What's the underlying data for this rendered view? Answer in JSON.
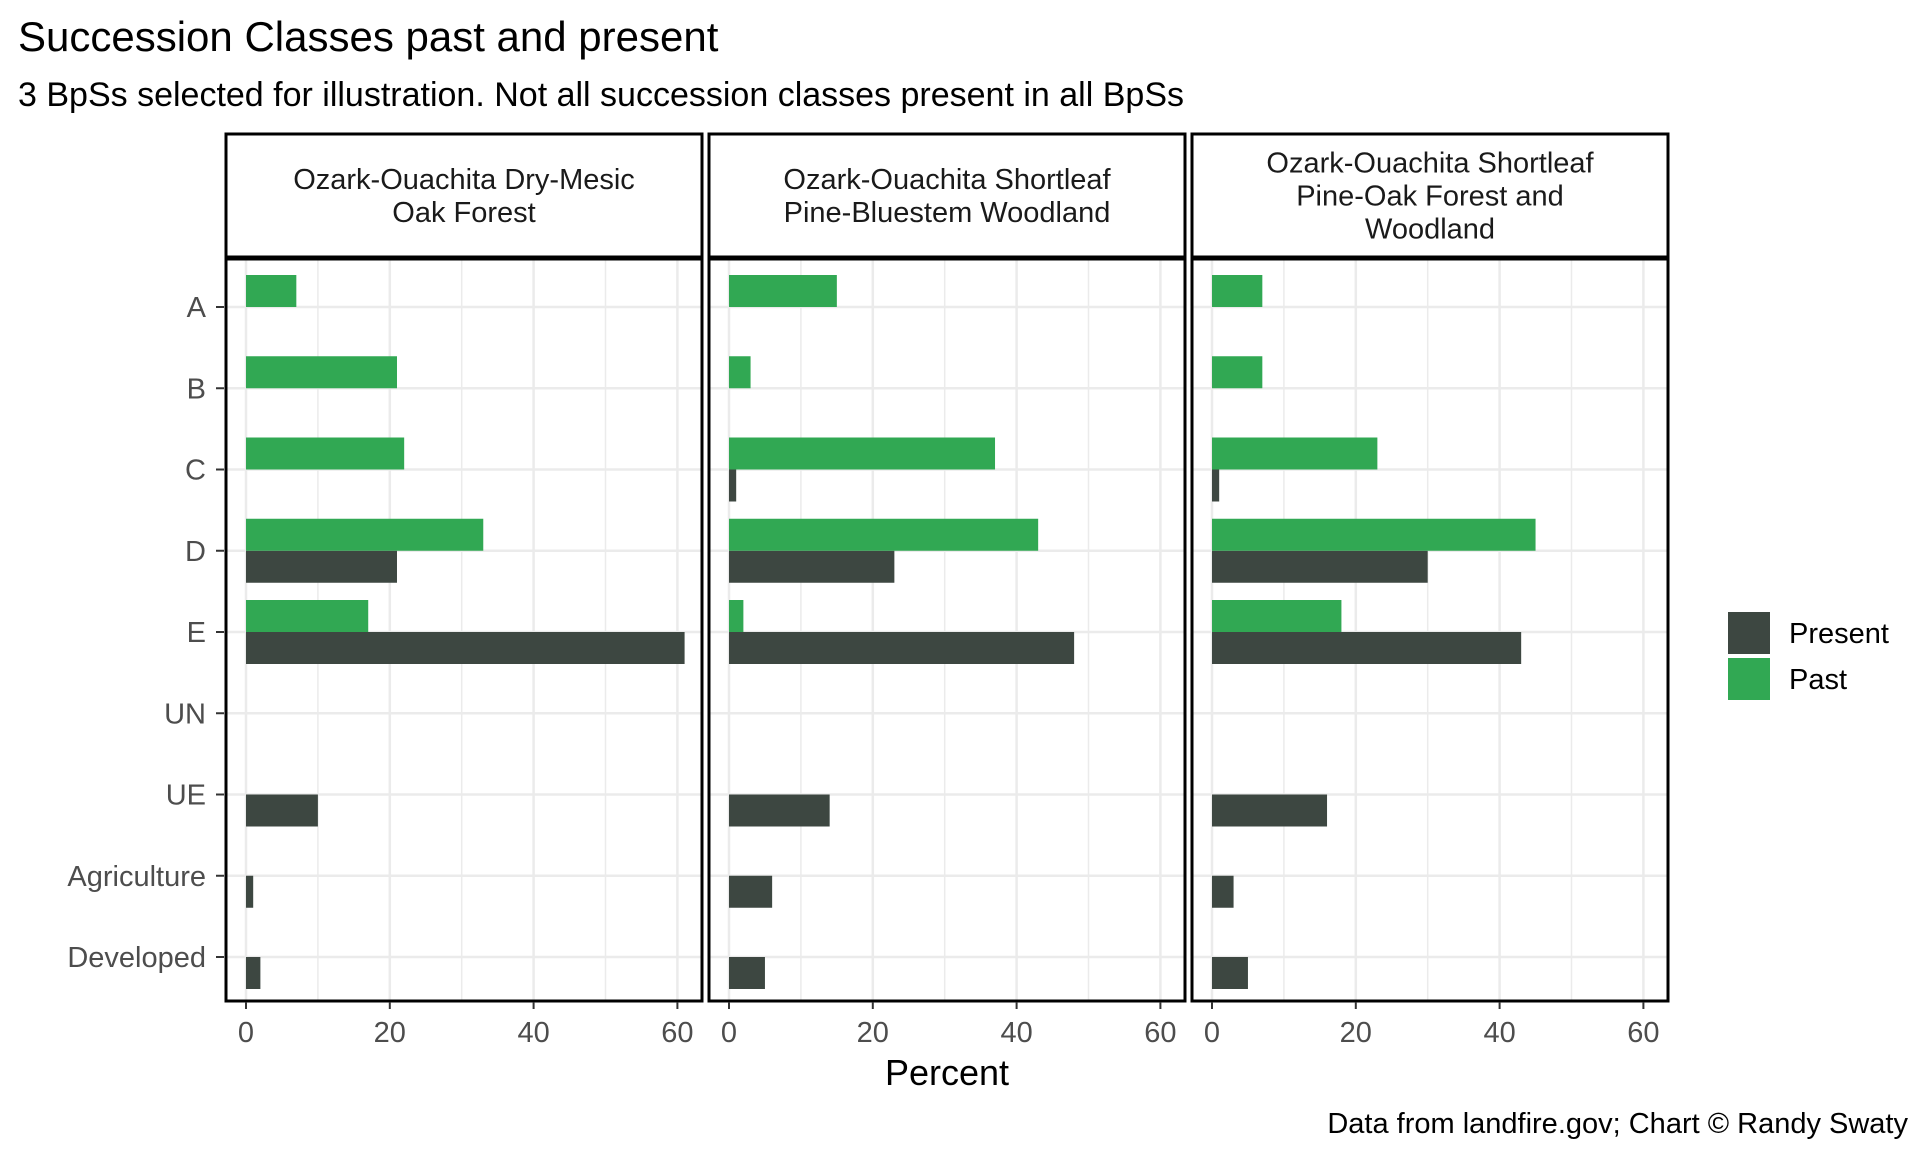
{
  "title": "Succession Classes past and present",
  "subtitle": "3 BpSs selected for illustration. Not all succession classes present in all BpSs",
  "caption": "Data from landfire.gov; Chart © Randy Swaty",
  "colors": {
    "present": "#3d4741",
    "past": "#31a853",
    "grid": "#ebebeb",
    "panel_border": "#000000"
  },
  "chart_data": {
    "type": "bar",
    "orientation": "horizontal",
    "facet_by": "BpS",
    "xlabel": "Percent",
    "ylabel": "",
    "xlim": [
      0,
      64
    ],
    "x_ticks": [
      0,
      20,
      40,
      60
    ],
    "categories": [
      "A",
      "B",
      "C",
      "D",
      "E",
      "UN",
      "UE",
      "Agriculture",
      "Developed"
    ],
    "legend": {
      "position": "right",
      "entries": [
        "Present",
        "Past"
      ]
    },
    "grid": true,
    "panels": [
      {
        "label": "Ozark-Ouachita Dry-Mesic Oak Forest",
        "strip_lines": [
          "Ozark-Ouachita Dry-Mesic",
          "Oak Forest"
        ],
        "series": [
          {
            "name": "Present",
            "values": [
              0,
              0,
              0,
              21,
              61,
              0,
              10,
              1,
              2
            ]
          },
          {
            "name": "Past",
            "values": [
              7,
              21,
              22,
              33,
              17,
              0,
              0,
              0,
              0
            ]
          }
        ]
      },
      {
        "label": "Ozark-Ouachita Shortleaf Pine-Bluestem Woodland",
        "strip_lines": [
          "Ozark-Ouachita Shortleaf",
          "Pine-Bluestem Woodland"
        ],
        "series": [
          {
            "name": "Present",
            "values": [
              0,
              0,
              1,
              23,
              48,
              0,
              14,
              6,
              5
            ]
          },
          {
            "name": "Past",
            "values": [
              15,
              3,
              37,
              43,
              2,
              0,
              0,
              0,
              0
            ]
          }
        ]
      },
      {
        "label": "Ozark-Ouachita Shortleaf Pine-Oak Forest and Woodland",
        "strip_lines": [
          "Ozark-Ouachita Shortleaf",
          "Pine-Oak Forest and",
          "Woodland"
        ],
        "series": [
          {
            "name": "Present",
            "values": [
              0,
              0,
              1,
              30,
              43,
              0,
              16,
              3,
              5
            ]
          },
          {
            "name": "Past",
            "values": [
              7,
              7,
              23,
              45,
              18,
              0,
              0,
              0,
              0
            ]
          }
        ]
      }
    ]
  }
}
